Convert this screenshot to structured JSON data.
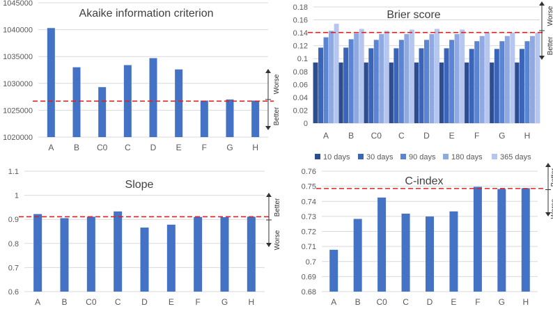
{
  "chart_data": [
    {
      "id": "aic",
      "type": "bar",
      "title": "Akaike information criterion",
      "categories": [
        "A",
        "B",
        "C0",
        "C",
        "D",
        "E",
        "F",
        "G",
        "H"
      ],
      "values": [
        1040300,
        1033000,
        1029300,
        1033400,
        1034700,
        1032600,
        1026800,
        1027000,
        1026800
      ],
      "ylim": [
        1020000,
        1045000
      ],
      "yticks": [
        1020000,
        1025000,
        1030000,
        1035000,
        1040000,
        1045000
      ],
      "reference_line": 1026700,
      "grid": true,
      "direction": {
        "upper": "Worse",
        "lower": "Better"
      }
    },
    {
      "id": "brier",
      "type": "bar",
      "title": "Brier score",
      "categories": [
        "A",
        "B",
        "C0",
        "C",
        "D",
        "E",
        "F",
        "G",
        "H"
      ],
      "series": [
        {
          "name": "10 days",
          "values": [
            0.094,
            0.094,
            0.094,
            0.094,
            0.094,
            0.094,
            0.094,
            0.094,
            0.094
          ]
        },
        {
          "name": "30 days",
          "values": [
            0.117,
            0.117,
            0.116,
            0.116,
            0.116,
            0.116,
            0.115,
            0.115,
            0.115
          ]
        },
        {
          "name": "90 days",
          "values": [
            0.133,
            0.13,
            0.129,
            0.129,
            0.129,
            0.129,
            0.127,
            0.127,
            0.127
          ]
        },
        {
          "name": "180 days",
          "values": [
            0.143,
            0.139,
            0.138,
            0.138,
            0.138,
            0.138,
            0.135,
            0.135,
            0.135
          ]
        },
        {
          "name": "365 days",
          "values": [
            0.154,
            0.146,
            0.143,
            0.145,
            0.146,
            0.145,
            0.14,
            0.14,
            0.14
          ]
        }
      ],
      "colors": [
        "#2e4d8f",
        "#3a65b8",
        "#5a85d4",
        "#8fa9e3",
        "#b7c6ee"
      ],
      "ylim": [
        0,
        0.18
      ],
      "yticks": [
        0,
        0.02,
        0.04,
        0.06,
        0.08,
        0.1,
        0.12,
        0.14,
        0.16,
        0.18
      ],
      "reference_line": 0.1405,
      "grid": true,
      "legend": "bottom",
      "direction": {
        "upper": "Worse",
        "lower": "Better"
      }
    },
    {
      "id": "slope",
      "type": "bar",
      "title": "Slope",
      "categories": [
        "A",
        "B",
        "C0",
        "C",
        "D",
        "E",
        "F",
        "G",
        "H"
      ],
      "values": [
        0.922,
        0.905,
        0.911,
        0.933,
        0.866,
        0.878,
        0.91,
        0.909,
        0.911
      ],
      "ylim": [
        0.6,
        1.1
      ],
      "yticks": [
        0.6,
        0.7,
        0.8,
        0.9,
        1,
        1.1
      ],
      "reference_line": 0.911,
      "grid": true,
      "direction": {
        "upper": "Better",
        "lower": "Worse"
      }
    },
    {
      "id": "cindex",
      "type": "bar",
      "title": "C-index",
      "categories": [
        "A",
        "B",
        "C0",
        "C",
        "D",
        "E",
        "F",
        "G",
        "H"
      ],
      "values": [
        0.7078,
        0.7283,
        0.7425,
        0.7318,
        0.7299,
        0.7333,
        0.7496,
        0.7482,
        0.7487
      ],
      "ylim": [
        0.68,
        0.76
      ],
      "yticks": [
        0.68,
        0.69,
        0.7,
        0.71,
        0.72,
        0.73,
        0.74,
        0.75,
        0.76
      ],
      "reference_line": 0.7485,
      "grid": true,
      "direction": {
        "upper": "Better",
        "lower": "Worse"
      }
    }
  ],
  "colors": {
    "bar": "#4472c4",
    "reference": "#e02020",
    "grid": "#d9d9d9",
    "axis_text": "#595959",
    "title": "#404040"
  }
}
